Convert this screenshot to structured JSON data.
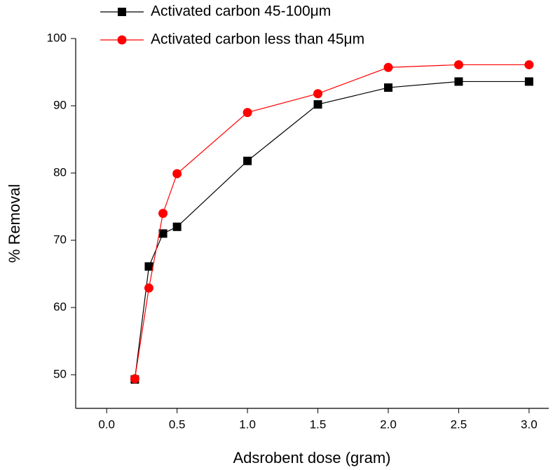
{
  "chart_data": {
    "type": "line",
    "x_label": "Adsrobent dose (gram)",
    "y_label": "% Removal",
    "x": [
      0.2,
      0.3,
      0.4,
      0.5,
      1.0,
      1.5,
      2.0,
      2.5,
      3.0
    ],
    "series": [
      {
        "name": "Activated carbon 45-100μm",
        "color": "#000000",
        "marker": "square",
        "values": [
          49.3,
          66.1,
          71.0,
          72.0,
          81.8,
          90.2,
          92.7,
          93.6,
          93.6
        ]
      },
      {
        "name": "Activated carbon less than 45μm",
        "color": "#ff0000",
        "marker": "circle",
        "values": [
          49.4,
          62.9,
          74.0,
          79.9,
          89.0,
          91.8,
          95.7,
          96.1,
          96.1
        ]
      }
    ],
    "xlim": [
      -0.22,
      3.14
    ],
    "ylim": [
      45,
      100
    ],
    "xticks": [
      {
        "value": 0,
        "label": "0.0"
      },
      0.5,
      {
        "value": 1,
        "label": "1.0"
      },
      1.5,
      {
        "value": 2,
        "label": "2.0"
      },
      2.5,
      {
        "value": 3,
        "label": "3.0"
      }
    ],
    "yticks": [
      50,
      60,
      70,
      80,
      90,
      100
    ],
    "grid": false,
    "legend": "top"
  }
}
